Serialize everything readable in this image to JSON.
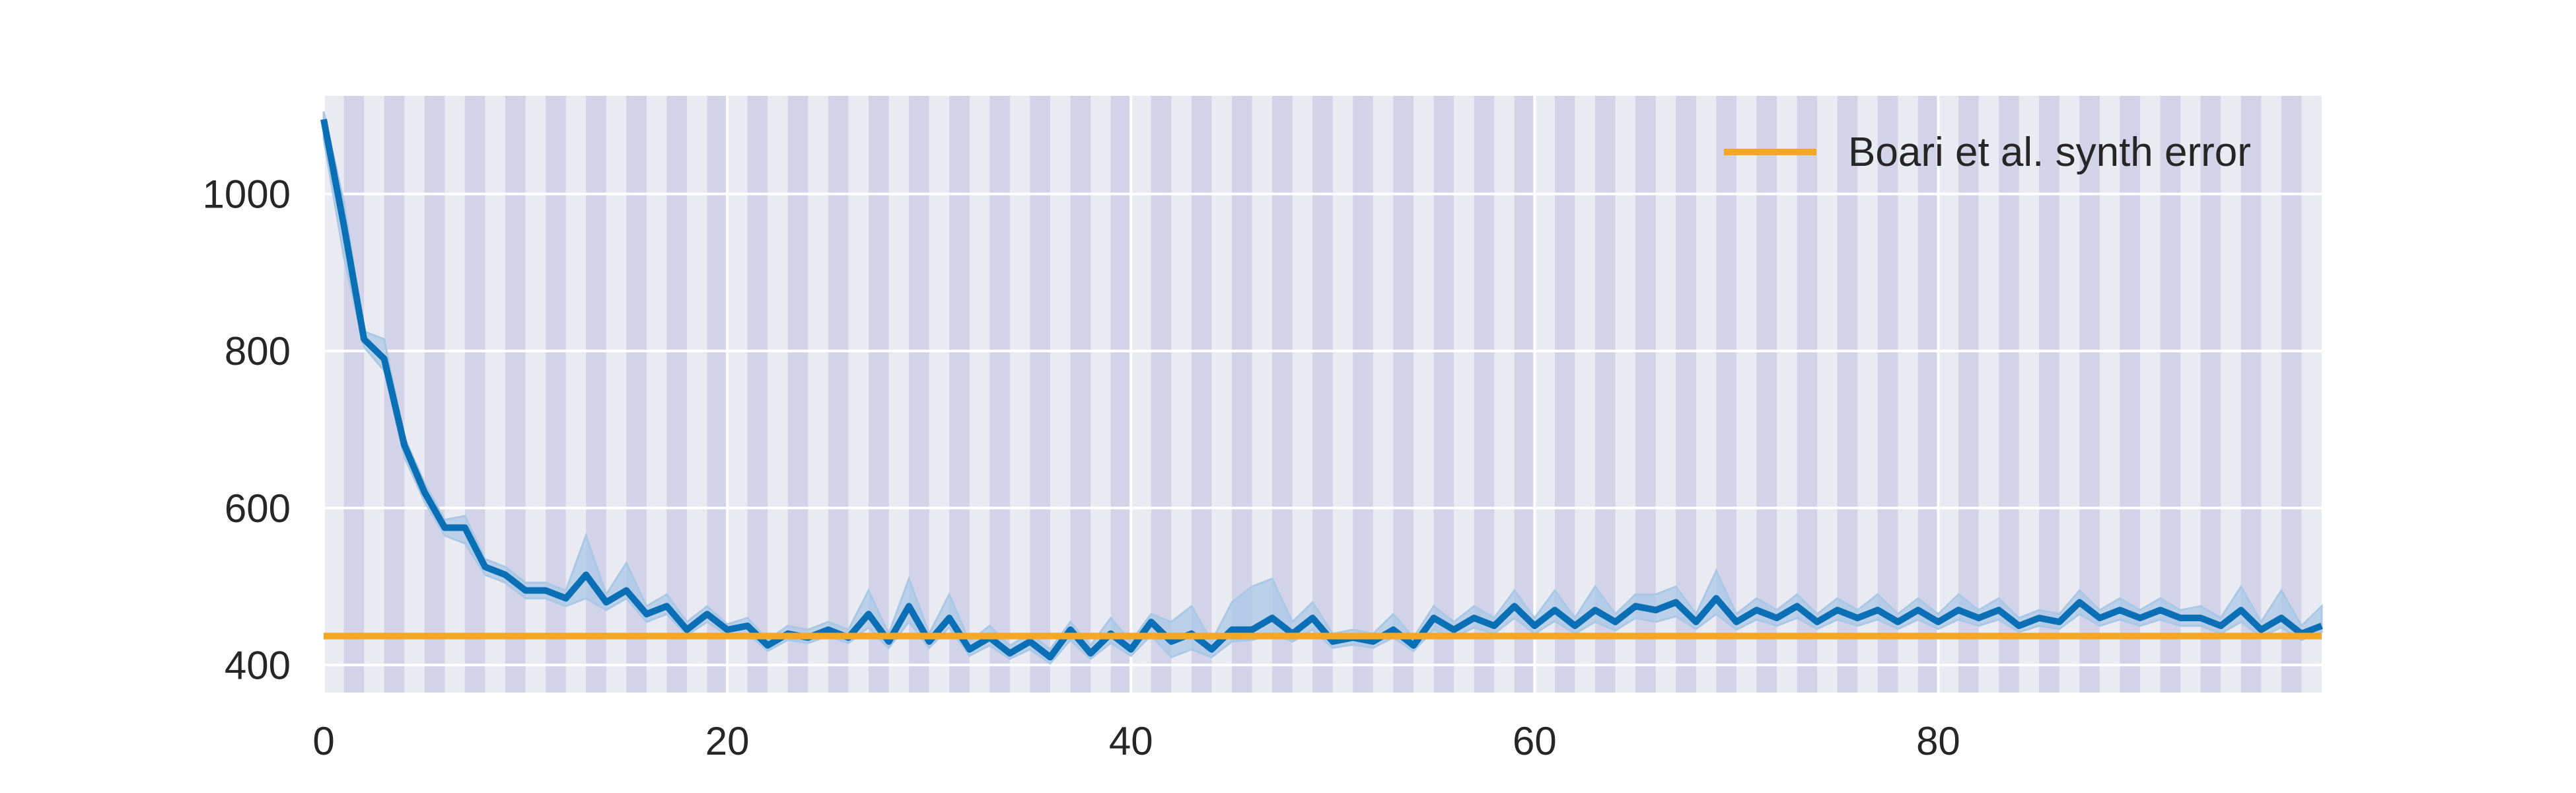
{
  "chart_data": {
    "type": "line",
    "title": "",
    "xlabel": "",
    "ylabel": "",
    "xlim": [
      0,
      99
    ],
    "ylim": [
      365,
      1125
    ],
    "x_ticks": [
      "0",
      "20",
      "40",
      "60",
      "80"
    ],
    "x_tick_values": [
      0,
      20,
      40,
      60,
      80
    ],
    "y_ticks": [
      "400",
      "600",
      "800",
      "1000"
    ],
    "y_tick_values": [
      400,
      600,
      800,
      1000
    ],
    "grid": true,
    "legend_position": "top-right",
    "shaded_bands": {
      "start": 1,
      "step": 2,
      "width": 1,
      "end": 99,
      "color": "#b5b5de"
    },
    "series": [
      {
        "name": "",
        "color": "#0a6fb5",
        "band_color": "#a9c8e6",
        "x": [
          0,
          1,
          2,
          3,
          4,
          5,
          6,
          7,
          8,
          9,
          10,
          11,
          12,
          13,
          14,
          15,
          16,
          17,
          18,
          19,
          20,
          21,
          22,
          23,
          24,
          25,
          26,
          27,
          28,
          29,
          30,
          31,
          32,
          33,
          34,
          35,
          36,
          37,
          38,
          39,
          40,
          41,
          42,
          43,
          44,
          45,
          46,
          47,
          48,
          49,
          50,
          51,
          52,
          53,
          54,
          55,
          56,
          57,
          58,
          59,
          60,
          61,
          62,
          63,
          64,
          65,
          66,
          67,
          68,
          69,
          70,
          71,
          72,
          73,
          74,
          75,
          76,
          77,
          78,
          79,
          80,
          81,
          82,
          83,
          84,
          85,
          86,
          87,
          88,
          89,
          90,
          91,
          92,
          93,
          94,
          95,
          96,
          97,
          98,
          99
        ],
        "values": [
          1095,
          960,
          815,
          790,
          680,
          620,
          575,
          575,
          525,
          515,
          495,
          495,
          485,
          515,
          480,
          495,
          465,
          475,
          445,
          465,
          445,
          450,
          425,
          440,
          435,
          445,
          435,
          465,
          430,
          475,
          430,
          460,
          420,
          435,
          415,
          430,
          410,
          445,
          415,
          440,
          420,
          455,
          430,
          440,
          420,
          445,
          445,
          460,
          440,
          460,
          430,
          435,
          430,
          445,
          425,
          460,
          445,
          460,
          450,
          475,
          450,
          470,
          450,
          470,
          455,
          475,
          470,
          480,
          455,
          485,
          455,
          470,
          460,
          475,
          455,
          470,
          460,
          470,
          455,
          470,
          455,
          470,
          460,
          470,
          450,
          460,
          455,
          480,
          460,
          470,
          460,
          470,
          460,
          460,
          450,
          470,
          445,
          460,
          440,
          450
        ],
        "lower": [
          1070,
          920,
          805,
          775,
          665,
          608,
          565,
          555,
          515,
          505,
          485,
          485,
          475,
          485,
          470,
          485,
          455,
          465,
          438,
          455,
          438,
          440,
          418,
          432,
          428,
          437,
          428,
          448,
          422,
          455,
          422,
          448,
          412,
          425,
          408,
          420,
          402,
          432,
          408,
          428,
          412,
          438,
          410,
          420,
          410,
          430,
          432,
          440,
          430,
          445,
          422,
          426,
          422,
          435,
          418,
          445,
          435,
          448,
          440,
          460,
          440,
          456,
          440,
          455,
          444,
          460,
          455,
          462,
          446,
          465,
          445,
          458,
          450,
          460,
          446,
          458,
          450,
          458,
          446,
          458,
          446,
          458,
          450,
          458,
          442,
          450,
          446,
          465,
          450,
          458,
          450,
          458,
          450,
          450,
          440,
          455,
          436,
          448,
          432,
          442
        ],
        "upper": [
          1105,
          990,
          825,
          815,
          690,
          632,
          585,
          590,
          535,
          525,
          505,
          505,
          495,
          565,
          490,
          530,
          475,
          490,
          455,
          475,
          452,
          460,
          432,
          450,
          445,
          455,
          445,
          495,
          440,
          510,
          440,
          490,
          430,
          450,
          425,
          440,
          420,
          455,
          425,
          460,
          430,
          465,
          455,
          475,
          430,
          480,
          500,
          510,
          455,
          480,
          440,
          445,
          440,
          465,
          435,
          475,
          455,
          475,
          460,
          495,
          460,
          495,
          460,
          500,
          465,
          490,
          490,
          500,
          465,
          520,
          465,
          485,
          470,
          490,
          465,
          485,
          470,
          490,
          465,
          485,
          465,
          490,
          470,
          485,
          460,
          470,
          465,
          495,
          470,
          485,
          470,
          485,
          470,
          475,
          460,
          500,
          455,
          495,
          450,
          475
        ]
      }
    ],
    "reference_lines": [
      {
        "name": "Boari et al. synth error",
        "value": 437,
        "color": "#f5a623"
      }
    ]
  }
}
